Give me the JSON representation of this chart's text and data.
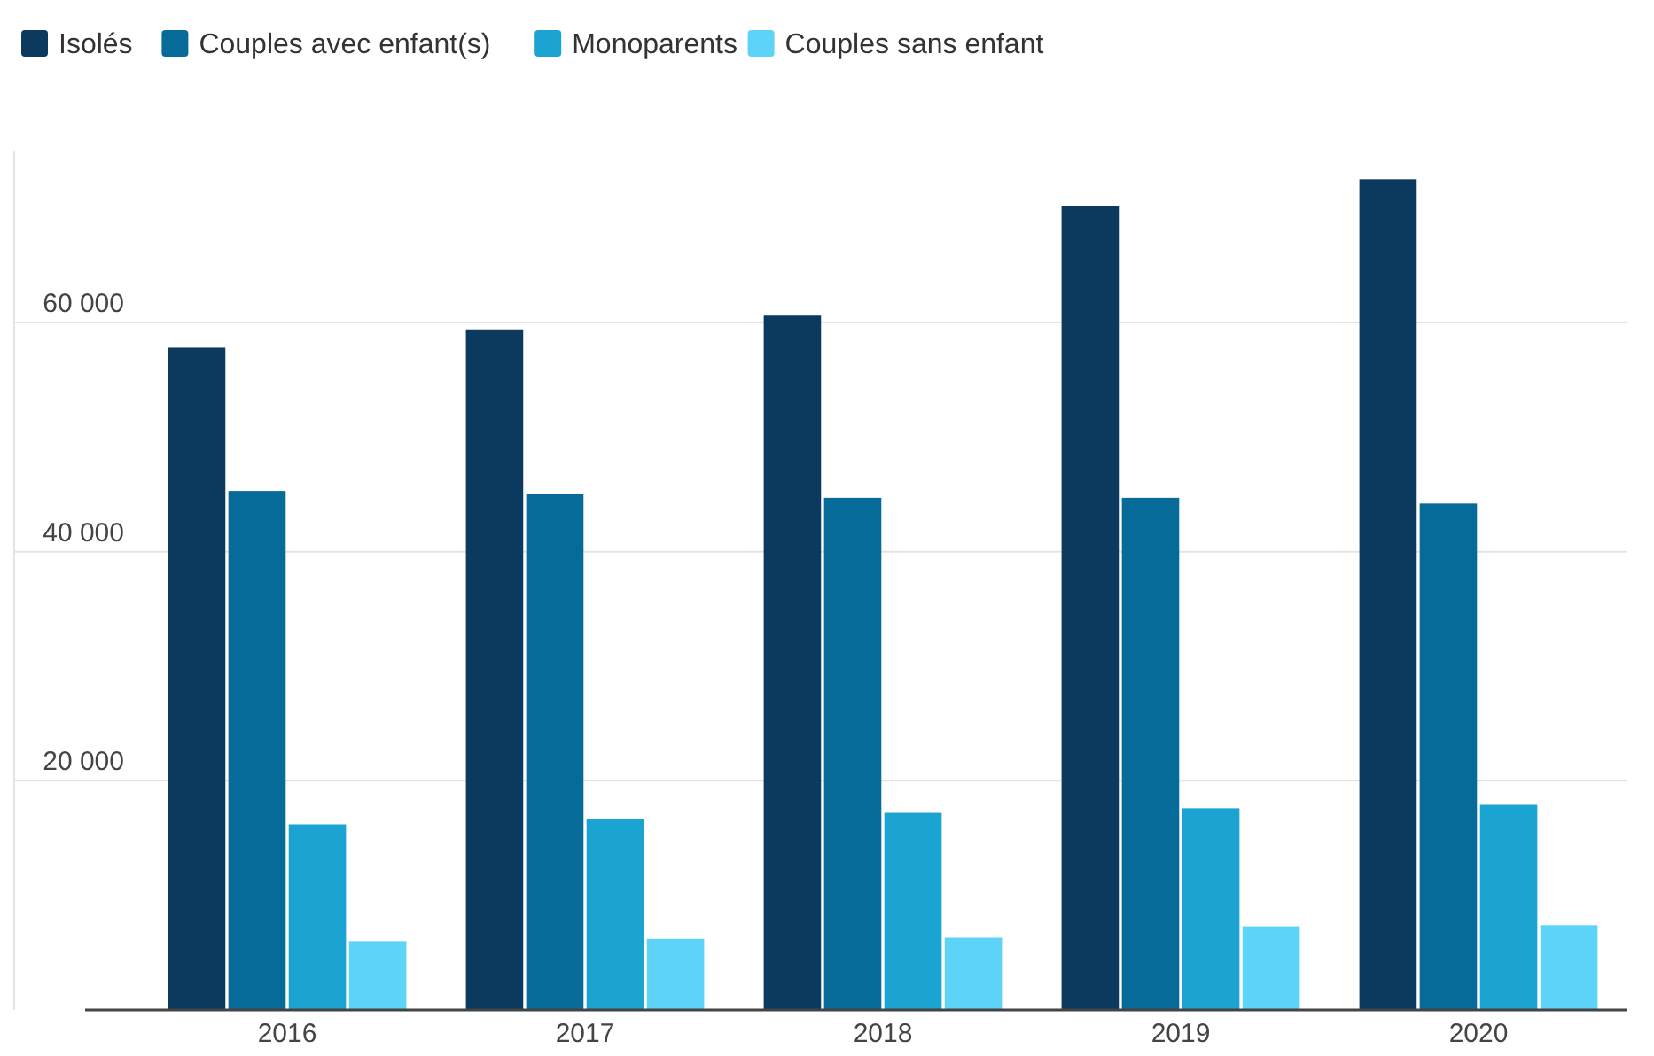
{
  "chart_data": {
    "type": "bar",
    "categories": [
      "2016",
      "2017",
      "2018",
      "2019",
      "2020"
    ],
    "series": [
      {
        "name": "Isolés",
        "color": "#0b3a5e",
        "values": [
          57800,
          59400,
          60600,
          70200,
          72500
        ]
      },
      {
        "name": "Couples avec enfant(s)",
        "color": "#076b9a",
        "values": [
          45300,
          45000,
          44700,
          44700,
          44200
        ]
      },
      {
        "name": "Monoparents",
        "color": "#1ba3d1",
        "values": [
          16200,
          16700,
          17200,
          17600,
          17900
        ]
      },
      {
        "name": "Couples sans enfant",
        "color": "#5dd3f7",
        "values": [
          6000,
          6200,
          6300,
          7300,
          7400
        ]
      }
    ],
    "ylim": [
      0,
      75000
    ],
    "yticks": [
      {
        "value": 20000,
        "label": "20 000"
      },
      {
        "value": 40000,
        "label": "40 000"
      },
      {
        "value": 60000,
        "label": "60 000"
      }
    ],
    "grid": "y",
    "legend": "top left"
  }
}
